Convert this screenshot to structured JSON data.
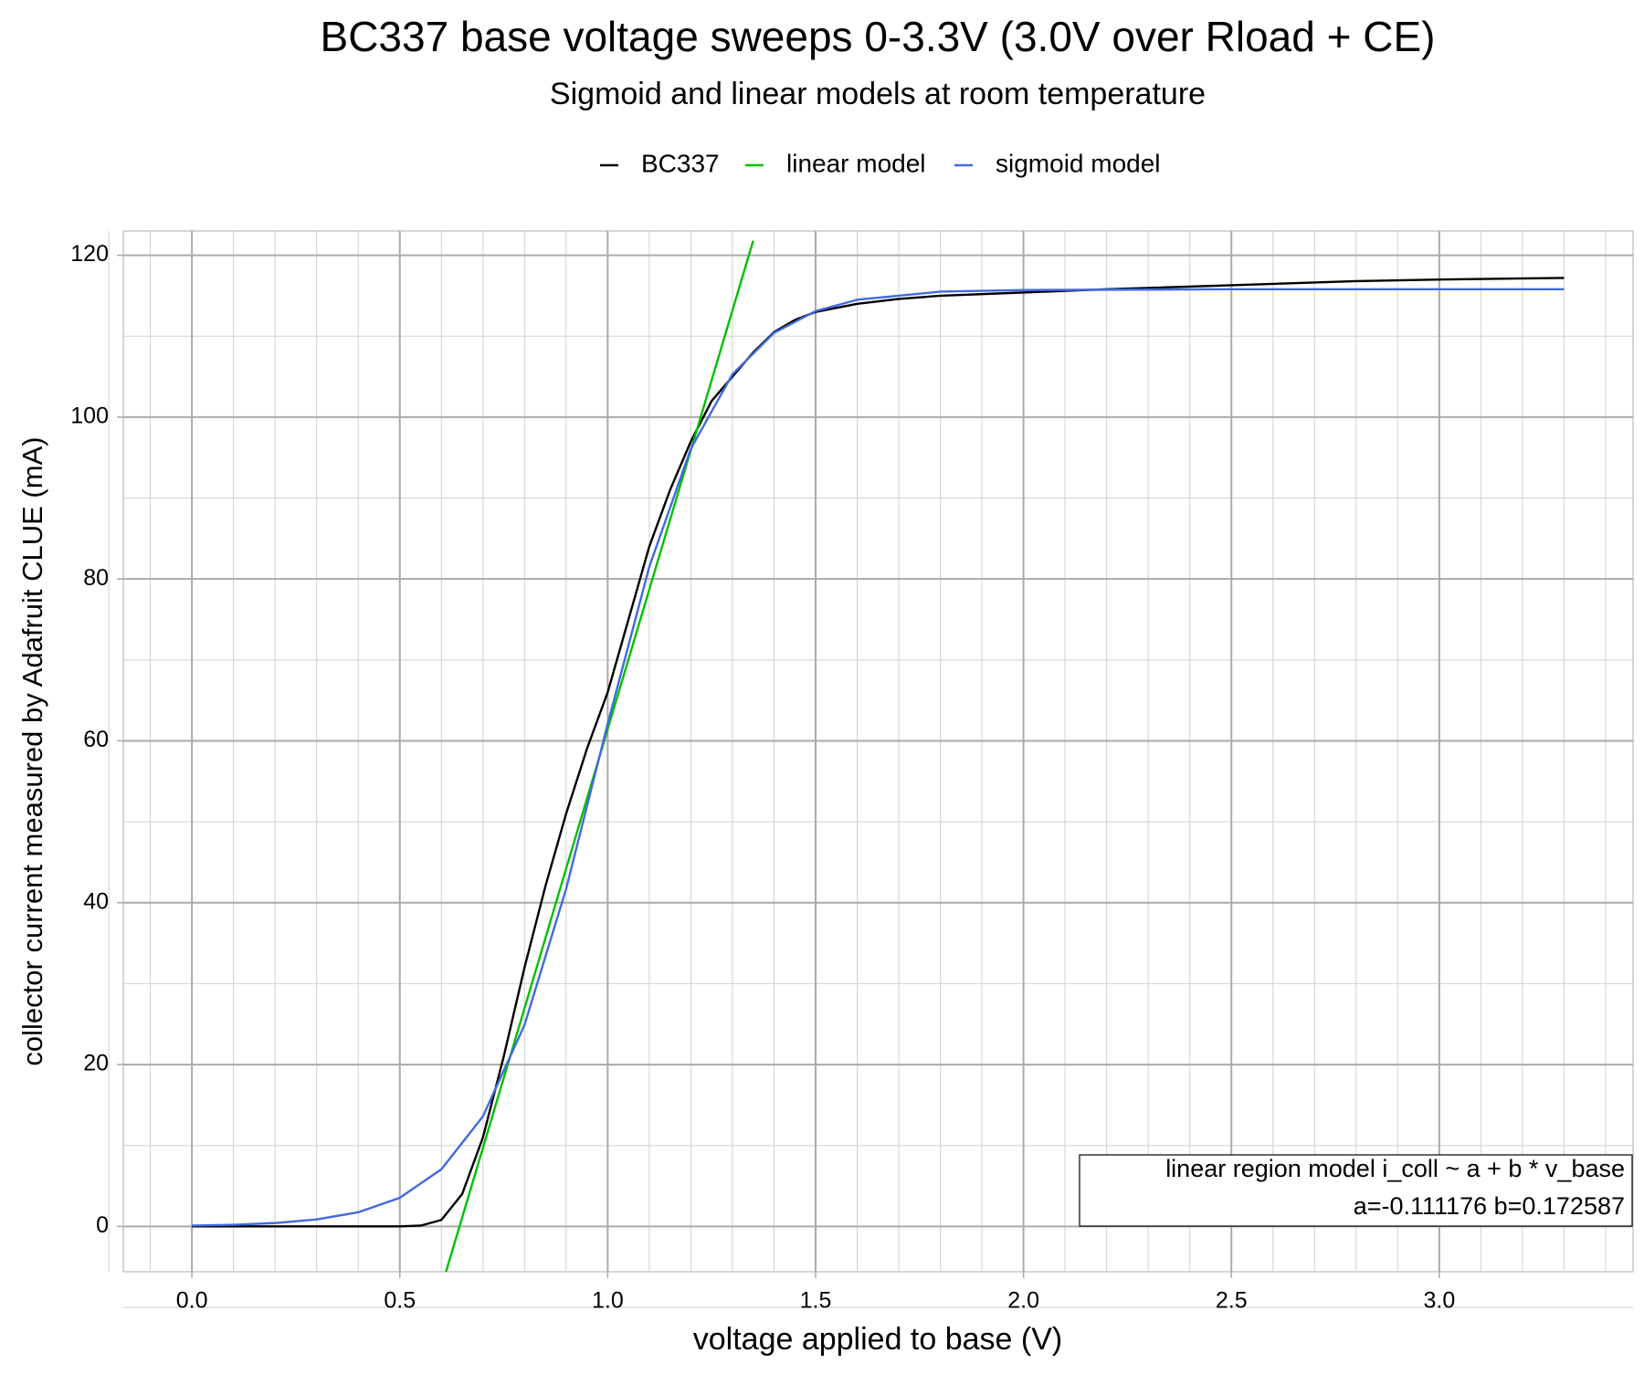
{
  "chart_data": {
    "type": "line",
    "title": "BC337 base voltage sweeps 0-3.3V (3.0V over Rload + CE)",
    "subtitle": "Sigmoid and linear models at room temperature",
    "x_label": "voltage applied to base (V)",
    "y_label": "collector current measured by Adafruit CLUE (mA)",
    "series": [
      {
        "name": "BC337",
        "color": "#000000",
        "x": [
          0,
          0.1,
          0.2,
          0.3,
          0.4,
          0.5,
          0.55,
          0.6,
          0.65,
          0.7,
          0.75,
          0.8,
          0.85,
          0.9,
          0.95,
          1.0,
          1.05,
          1.1,
          1.15,
          1.2,
          1.25,
          1.3,
          1.35,
          1.4,
          1.45,
          1.5,
          1.6,
          1.7,
          1.8,
          2.0,
          2.2,
          2.5,
          2.8,
          3.0,
          3.3
        ],
        "values": [
          0,
          0,
          0,
          0,
          0,
          0,
          0.1,
          0.8,
          4,
          11,
          21,
          32,
          42,
          51,
          59,
          66,
          75,
          84,
          91,
          97,
          102,
          105,
          108,
          110.5,
          112,
          113,
          114,
          114.6,
          115,
          115.4,
          115.8,
          116.3,
          116.8,
          117,
          117.2
        ]
      },
      {
        "name": "linear model",
        "color": "#00c000",
        "x": [
          0.61,
          1.35
        ],
        "values": [
          -5.8,
          121.8
        ]
      },
      {
        "name": "sigmoid model",
        "color": "#4169e1",
        "x": [
          0,
          0.1,
          0.2,
          0.3,
          0.4,
          0.5,
          0.6,
          0.7,
          0.8,
          0.9,
          1.0,
          1.1,
          1.2,
          1.3,
          1.4,
          1.5,
          1.6,
          1.8,
          2.0,
          2.5,
          3.3
        ],
        "values": [
          0.1,
          0.2,
          0.42,
          0.86,
          1.75,
          3.54,
          7.06,
          13.6,
          24.9,
          41.7,
          62.1,
          81.5,
          96.1,
          105.3,
          110.4,
          113.1,
          114.5,
          115.5,
          115.7,
          115.8,
          115.8
        ]
      }
    ],
    "xlim": [
      -0.165,
      3.466
    ],
    "ylim": [
      -5.6,
      123
    ],
    "xticks": [
      {
        "value": 0,
        "label": "0.0"
      },
      0.5,
      {
        "value": 1,
        "label": "1.0"
      },
      1.5,
      {
        "value": 2,
        "label": "2.0"
      },
      2.5,
      {
        "value": 3,
        "label": "3.0"
      }
    ],
    "yticks": [
      0,
      20,
      40,
      60,
      80,
      100,
      120
    ],
    "grid": true,
    "legend_position": "top",
    "annotation": [
      "linear region model i_coll ~ a + b * v_base",
      "a=-0.111176  b=0.172587"
    ]
  }
}
